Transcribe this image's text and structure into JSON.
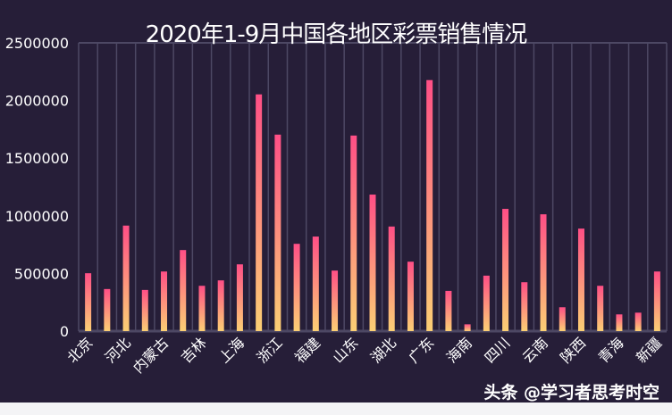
{
  "chart_data": {
    "type": "bar",
    "title": "2020年1-9月中国各地区彩票销售情况",
    "categories": [
      "北京",
      "",
      "河北",
      "",
      "内蒙古",
      "",
      "吉林",
      "",
      "上海",
      "",
      "浙江",
      "",
      "福建",
      "",
      "山东",
      "",
      "湖北",
      "",
      "广东",
      "",
      "海南",
      "",
      "四川",
      "",
      "云南",
      "",
      "陕西",
      "",
      "青海",
      "",
      "新疆"
    ],
    "values": [
      502000,
      365000,
      915000,
      357000,
      517000,
      703000,
      393000,
      440000,
      579000,
      2053000,
      1704000,
      757000,
      820000,
      525000,
      1696000,
      1184000,
      907000,
      602000,
      2177000,
      349000,
      59000,
      481000,
      1060000,
      424000,
      1013000,
      207000,
      889000,
      393000,
      145000,
      160000,
      517000
    ],
    "ylim": [
      0,
      2500000
    ],
    "yticks": [
      "0",
      "500000",
      "1000000",
      "1500000",
      "2000000",
      "2500000"
    ],
    "grid": "vertical",
    "colors": {
      "background": "#261e38",
      "bar_top": "#ff4f86",
      "bar_bottom": "#fbcf74",
      "grid": "#4d4864"
    }
  },
  "watermark": "头条 @学习者思考时空"
}
